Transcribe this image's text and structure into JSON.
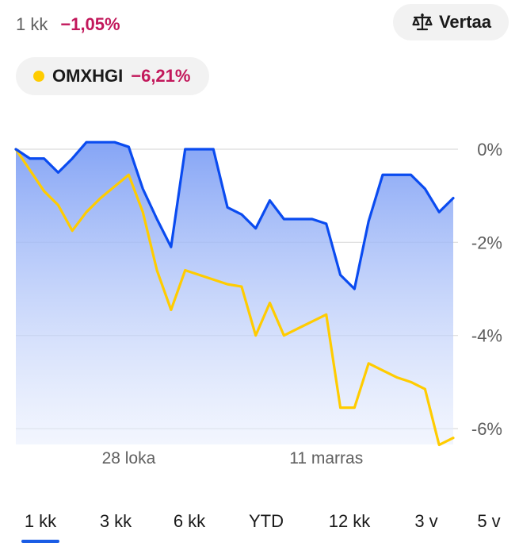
{
  "header": {
    "period_label": "1 kk",
    "change": "−1,05%",
    "compare_label": "Vertaa"
  },
  "comparison": {
    "name": "OMXHGI",
    "change": "−6,21%"
  },
  "colors": {
    "primary_line": "#0a4bf0",
    "compare_line": "#ffcc00",
    "negative": "#c2185b",
    "tab_active": "#1a5ce5"
  },
  "tabs": [
    {
      "label": "1 kk",
      "active": true
    },
    {
      "label": "3 kk",
      "active": false
    },
    {
      "label": "6 kk",
      "active": false
    },
    {
      "label": "YTD",
      "active": false
    },
    {
      "label": "12 kk",
      "active": false
    },
    {
      "label": "3 v",
      "active": false
    },
    {
      "label": "5 v",
      "active": false
    }
  ],
  "chart_data": {
    "type": "line",
    "y_ticks": [
      0,
      -2,
      -4,
      -6
    ],
    "y_tick_labels": [
      "0%",
      "-2%",
      "-4%",
      "-6%"
    ],
    "ylim": [
      -6.3,
      0.2
    ],
    "x_tick_labels": [
      {
        "label": "28 loka",
        "index": 8
      },
      {
        "label": "11 marras",
        "index": 22
      }
    ],
    "series": [
      {
        "values": [
          0.0,
          -0.2,
          -0.2,
          -0.5,
          -0.2,
          0.15,
          0.15,
          0.15,
          0.05,
          -0.85,
          -1.5,
          -2.1,
          0.0,
          0.0,
          0.0,
          -1.25,
          -1.4,
          -1.7,
          -1.1,
          -1.5,
          -1.5,
          -1.5,
          -1.6,
          -2.7,
          -3.0,
          -1.55,
          -0.55,
          -0.55,
          -0.55,
          -0.85,
          -1.35,
          -1.05
        ]
      },
      {
        "values": [
          0.0,
          -0.45,
          -0.9,
          -1.2,
          -1.75,
          -1.35,
          -1.05,
          -0.8,
          -0.55,
          -1.35,
          -2.6,
          -3.45,
          -2.6,
          -2.7,
          -2.8,
          -2.9,
          -2.95,
          -4.0,
          -3.3,
          -4.0,
          -3.85,
          -3.7,
          -3.55,
          -5.55,
          -5.55,
          -4.6,
          -4.75,
          -4.9,
          -5.0,
          -5.15,
          -6.35,
          -6.2
        ]
      }
    ]
  }
}
